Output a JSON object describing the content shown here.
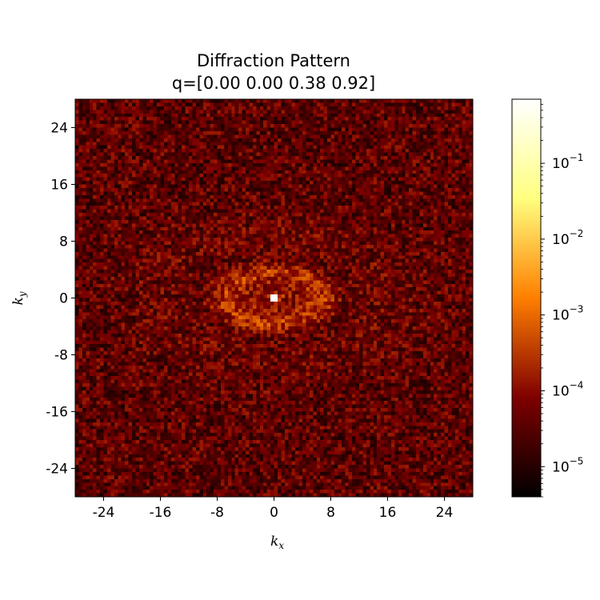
{
  "chart_data": {
    "type": "heatmap",
    "title": "Diffraction Pattern",
    "subtitle": "q=[0.00 0.00 0.38 0.92]",
    "xlabel": {
      "base": "k",
      "sub": "x"
    },
    "ylabel": {
      "base": "k",
      "sub": "y"
    },
    "xlim": [
      -28,
      28
    ],
    "ylim": [
      -28,
      28
    ],
    "xticks": [
      -24,
      -16,
      -8,
      0,
      8,
      16,
      24
    ],
    "xtick_labels": [
      "-24",
      "-16",
      "-8",
      "0",
      "8",
      "16",
      "24"
    ],
    "yticks": [
      24,
      16,
      8,
      0,
      -8,
      -16,
      -24
    ],
    "ytick_labels": [
      "24",
      "16",
      "8",
      "0",
      "-8",
      "-16",
      "-24"
    ],
    "grid_size": 112,
    "colormap": "afmhot",
    "colorbar": {
      "scale": "log",
      "vmin": 4e-06,
      "vmax": 0.7,
      "ticks": [
        {
          "base": "10",
          "exp": "−1",
          "value": 0.1
        },
        {
          "base": "10",
          "exp": "−2",
          "value": 0.01
        },
        {
          "base": "10",
          "exp": "−3",
          "value": 0.001
        },
        {
          "base": "10",
          "exp": "−4",
          "value": 0.0001
        },
        {
          "base": "10",
          "exp": "−5",
          "value": 1e-05
        }
      ]
    },
    "pattern": {
      "background_level": 4e-05,
      "ring_radius_x": 6.5,
      "ring_radius_y": 3.6,
      "ring_level": 0.00025,
      "central_peak_level": 0.7
    }
  }
}
